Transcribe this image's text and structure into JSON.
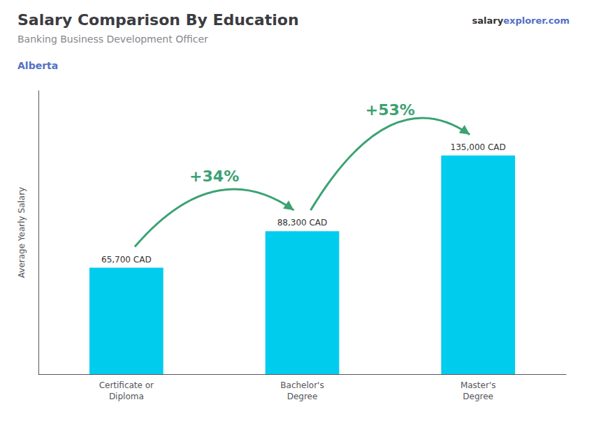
{
  "chart_data": {
    "type": "bar",
    "title": "Salary Comparison By Education",
    "subtitle": "Banking Business Development Officer",
    "location": "Alberta",
    "site": [
      "salary",
      "explorer.com"
    ],
    "ylabel": "Average Yearly Salary",
    "categories": [
      "Certificate or\nDiploma",
      "Bachelor's\nDegree",
      "Master's\nDegree"
    ],
    "values": [
      65700,
      88300,
      135000
    ],
    "value_labels": [
      "65,700 CAD",
      "88,300 CAD",
      "135,000 CAD"
    ],
    "data_labels": true,
    "annotations": [
      "+34%",
      "+53%"
    ],
    "color": "#00ccee",
    "ylim": [
      0,
      175000
    ],
    "grid": false,
    "tick_labels": "x"
  }
}
